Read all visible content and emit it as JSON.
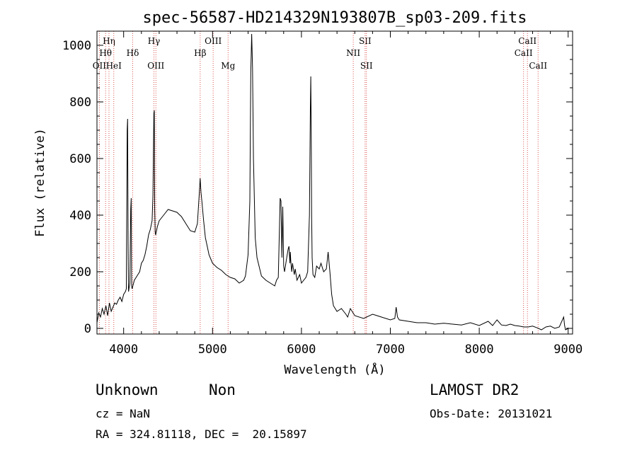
{
  "chart_data": {
    "type": "line",
    "title": "spec-56587-HD214329N193807B_sp03-209.fits",
    "xlabel": "Wavelength (Å)",
    "ylabel": "Flux (relative)",
    "xlim": [
      3700,
      9050
    ],
    "ylim": [
      -20,
      1050
    ],
    "xticks": [
      4000,
      5000,
      6000,
      7000,
      8000,
      9000
    ],
    "yticks": [
      0,
      200,
      400,
      600,
      800,
      1000
    ],
    "grid": false,
    "series": [
      {
        "x": [
          3700,
          3720,
          3740,
          3760,
          3780,
          3800,
          3820,
          3840,
          3860,
          3880,
          3900,
          3920,
          3940,
          3960,
          3980,
          4000,
          4020,
          4030,
          4040,
          4045,
          4050,
          4055,
          4060,
          4070,
          4080,
          4085,
          4090,
          4095,
          4100,
          4120,
          4140,
          4160,
          4180,
          4200,
          4220,
          4240,
          4260,
          4280,
          4300,
          4320,
          4330,
          4340,
          4345,
          4350,
          4355,
          4360,
          4380,
          4400,
          4450,
          4500,
          4550,
          4600,
          4650,
          4700,
          4750,
          4800,
          4830,
          4850,
          4861,
          4870,
          4880,
          4900,
          4920,
          4940,
          4960,
          4980,
          5000,
          5050,
          5100,
          5150,
          5200,
          5250,
          5300,
          5350,
          5370,
          5400,
          5420,
          5430,
          5440,
          5450,
          5460,
          5480,
          5500,
          5550,
          5600,
          5650,
          5700,
          5720,
          5740,
          5760,
          5770,
          5780,
          5790,
          5800,
          5810,
          5830,
          5850,
          5860,
          5870,
          5875,
          5880,
          5890,
          5900,
          5920,
          5930,
          5950,
          5980,
          6000,
          6050,
          6070,
          6090,
          6100,
          6105,
          6110,
          6115,
          6120,
          6130,
          6150,
          6170,
          6200,
          6220,
          6250,
          6280,
          6300,
          6320,
          6340,
          6360,
          6400,
          6450,
          6500,
          6520,
          6550,
          6600,
          6700,
          6800,
          6850,
          6900,
          7000,
          7050,
          7065,
          7080,
          7100,
          7200,
          7300,
          7400,
          7500,
          7600,
          7700,
          7800,
          7900,
          8000,
          8100,
          8150,
          8200,
          8250,
          8300,
          8350,
          8400,
          8450,
          8500,
          8550,
          8600,
          8650,
          8700,
          8750,
          8800,
          8850,
          8900,
          8950,
          8960,
          8970,
          9000
        ],
        "y": [
          20,
          55,
          40,
          70,
          50,
          80,
          45,
          90,
          60,
          75,
          90,
          85,
          100,
          110,
          95,
          120,
          130,
          140,
          700,
          740,
          300,
          130,
          140,
          160,
          420,
          460,
          150,
          140,
          145,
          170,
          180,
          190,
          200,
          230,
          240,
          260,
          290,
          330,
          350,
          380,
          470,
          760,
          770,
          420,
          340,
          330,
          360,
          380,
          400,
          420,
          415,
          410,
          395,
          370,
          345,
          340,
          370,
          470,
          530,
          480,
          450,
          380,
          320,
          290,
          260,
          245,
          230,
          215,
          205,
          190,
          180,
          175,
          160,
          170,
          185,
          260,
          450,
          900,
          1040,
          920,
          600,
          320,
          250,
          185,
          170,
          160,
          150,
          170,
          180,
          460,
          450,
          250,
          430,
          220,
          200,
          240,
          280,
          290,
          230,
          270,
          240,
          200,
          230,
          190,
          210,
          170,
          190,
          160,
          180,
          200,
          400,
          780,
          890,
          700,
          400,
          250,
          190,
          180,
          220,
          210,
          230,
          200,
          210,
          270,
          200,
          120,
          80,
          60,
          70,
          50,
          40,
          70,
          45,
          35,
          50,
          45,
          40,
          30,
          35,
          75,
          40,
          30,
          25,
          20,
          20,
          15,
          18,
          15,
          12,
          20,
          10,
          25,
          10,
          30,
          12,
          10,
          15,
          10,
          8,
          5,
          5,
          8,
          2,
          -5,
          5,
          8,
          0,
          5,
          40,
          10,
          -5,
          0
        ]
      }
    ],
    "line_markers": [
      {
        "label": "Hη",
        "x": 3835,
        "row": 0
      },
      {
        "label": "Hθ",
        "x": 3797,
        "row": 1
      },
      {
        "label": "OII",
        "x": 3727,
        "row": 2
      },
      {
        "label": "HeI",
        "x": 3889,
        "row": 2
      },
      {
        "label": "Hδ",
        "x": 4102,
        "row": 1
      },
      {
        "label": "Hγ",
        "x": 4341,
        "row": 0
      },
      {
        "label": "OIII",
        "x": 4363,
        "row": 2
      },
      {
        "label": "Hβ",
        "x": 4861,
        "row": 1
      },
      {
        "label": "OIII",
        "x": 5007,
        "row": 0
      },
      {
        "label": "Mg",
        "x": 5175,
        "row": 2
      },
      {
        "label": "SII",
        "x": 6716,
        "row": 0
      },
      {
        "label": "NII",
        "x": 6583,
        "row": 1
      },
      {
        "label": "SII",
        "x": 6731,
        "row": 2
      },
      {
        "label": "CaII",
        "x": 8542,
        "row": 0
      },
      {
        "label": "CaII",
        "x": 8498,
        "row": 1
      },
      {
        "label": "CaII",
        "x": 8662,
        "row": 2
      }
    ]
  },
  "info": {
    "class": "Unknown",
    "subclass": "Non",
    "cz": "cz = NaN",
    "coords": "RA = 324.81118, DEC =  20.15897",
    "survey": "LAMOST DR2",
    "obs_date": "Obs-Date: 20131021"
  }
}
